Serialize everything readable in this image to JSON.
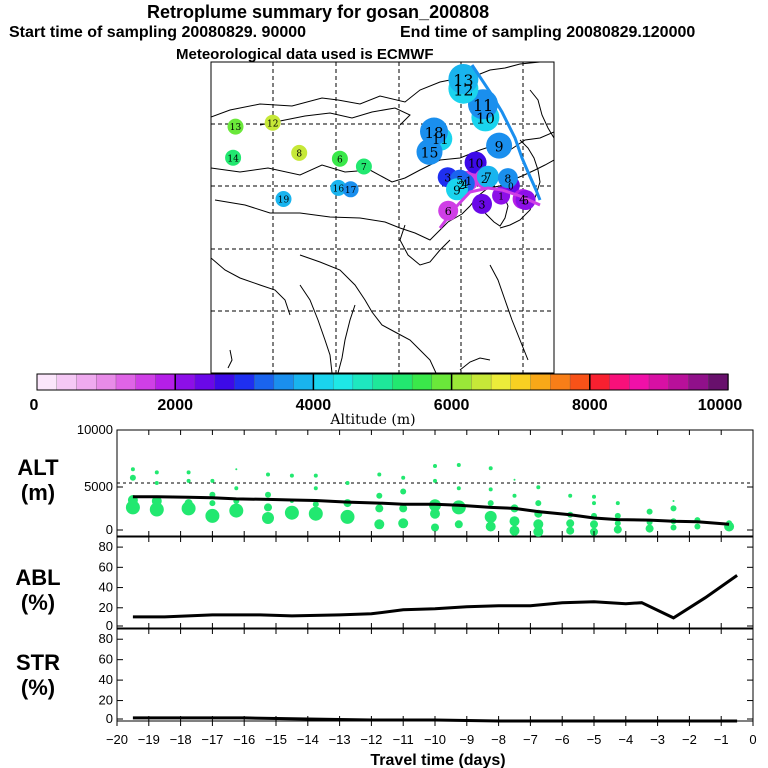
{
  "header": {
    "title": "Retroplume summary for gosan_200808",
    "start": "Start time of sampling 20080829. 90000",
    "end": "End time of sampling 20080829.120000",
    "met": "Meteorological data used is ECMWF"
  },
  "colorbar": {
    "label": "Altitude (m)",
    "ticks": [
      "0",
      "2000",
      "4000",
      "6000",
      "8000",
      "10000"
    ],
    "colors": [
      "#fbe6fb",
      "#f5c8f5",
      "#efaaef",
      "#e88be8",
      "#df64e6",
      "#cf3fe6",
      "#b51fe8",
      "#8d0fe8",
      "#6a08e8",
      "#3d0ae8",
      "#1f2ff0",
      "#1a64ee",
      "#1a8fee",
      "#19b4ee",
      "#1ad4ee",
      "#1ee8e6",
      "#1ee8c0",
      "#1ee89a",
      "#22e870",
      "#3ae84a",
      "#6ae83a",
      "#9ae838",
      "#c6e838",
      "#ecec3a",
      "#f8d022",
      "#f8a818",
      "#f87e18",
      "#f85218",
      "#f82030",
      "#f8107a",
      "#f010a8",
      "#d810a4",
      "#b8109a",
      "#90108a",
      "#68106c"
    ]
  },
  "map": {
    "plume_labels": [
      {
        "t": "0",
        "lon": 131.2,
        "lat": 38.6,
        "c": "#6a08e8",
        "s": 9
      },
      {
        "t": "1",
        "lon": 129.2,
        "lat": 36.5,
        "c": "#8d0fe8",
        "s": 9
      },
      {
        "t": "2",
        "lon": 125.8,
        "lat": 40.0,
        "c": "#cf3fe6",
        "s": 10
      },
      {
        "t": "3",
        "lon": 125.3,
        "lat": 34.8,
        "c": "#6a08e8",
        "s": 10
      },
      {
        "t": "4",
        "lon": 133.6,
        "lat": 35.8,
        "c": "#b51fe8",
        "s": 10
      },
      {
        "t": "5",
        "lon": 134.2,
        "lat": 35.6,
        "c": "#8d0fe8",
        "s": 10
      },
      {
        "t": "6",
        "lon": 118.4,
        "lat": 33.4,
        "c": "#cf3fe6",
        "s": 10
      },
      {
        "t": "7",
        "lon": 126.5,
        "lat": 40.4,
        "c": "#19b4ee",
        "s": 11
      },
      {
        "t": "8",
        "lon": 130.6,
        "lat": 40.1,
        "c": "#1a8fee",
        "s": 10
      },
      {
        "t": "9",
        "lon": 128.8,
        "lat": 46.8,
        "c": "#1a8fee",
        "s": 13
      },
      {
        "t": "10",
        "lon": 126.0,
        "lat": 52.6,
        "c": "#1ad4ee",
        "s": 14
      },
      {
        "t": "11",
        "lon": 125.5,
        "lat": 55.3,
        "c": "#1a8fee",
        "s": 15
      },
      {
        "t": "12",
        "lon": 121.5,
        "lat": 58.5,
        "c": "#1ad4ee",
        "s": 15
      },
      {
        "t": "13",
        "lon": 121.5,
        "lat": 60.5,
        "c": "#19b4ee",
        "s": 15
      }
    ],
    "outer_labels": [
      {
        "t": "1",
        "lon": 122.6,
        "lat": 39.6,
        "c": "#cf3fe6",
        "s": 10
      },
      {
        "t": "2",
        "lon": 121.2,
        "lat": 38.8,
        "c": "#19b4ee",
        "s": 10
      },
      {
        "t": "3",
        "lon": 118.3,
        "lat": 40.3,
        "c": "#1f2ff0",
        "s": 10
      },
      {
        "t": "4",
        "lon": 121.8,
        "lat": 39.0,
        "c": "#1a64ee",
        "s": 10
      },
      {
        "t": "5",
        "lon": 120.8,
        "lat": 39.8,
        "c": "#1a64ee",
        "s": 10
      },
      {
        "t": "6",
        "lon": 96.3,
        "lat": 44.1,
        "c": "#3ae84a",
        "s": 8
      },
      {
        "t": "7",
        "lon": 101.2,
        "lat": 42.5,
        "c": "#22e870",
        "s": 8
      },
      {
        "t": "8",
        "lon": 88.0,
        "lat": 45.3,
        "c": "#c6e838",
        "s": 8
      },
      {
        "t": "9",
        "lon": 120.2,
        "lat": 37.8,
        "c": "#1ad4ee",
        "s": 11
      },
      {
        "t": "10",
        "lon": 124.0,
        "lat": 43.3,
        "c": "#3d0ae8",
        "s": 11
      },
      {
        "t": "11",
        "lon": 116.8,
        "lat": 48.2,
        "c": "#1ad4ee",
        "s": 12
      },
      {
        "t": "12",
        "lon": 82.6,
        "lat": 51.5,
        "c": "#c6e838",
        "s": 8
      },
      {
        "t": "13",
        "lon": 75.0,
        "lat": 50.7,
        "c": "#6ae83a",
        "s": 8
      },
      {
        "t": "14",
        "lon": 74.5,
        "lat": 44.3,
        "c": "#22e870",
        "s": 8
      },
      {
        "t": "15",
        "lon": 114.6,
        "lat": 45.5,
        "c": "#1a8fee",
        "s": 13
      },
      {
        "t": "16",
        "lon": 96.0,
        "lat": 38.1,
        "c": "#19b4ee",
        "s": 8
      },
      {
        "t": "17",
        "lon": 98.5,
        "lat": 37.8,
        "c": "#1a8fee",
        "s": 8
      },
      {
        "t": "18",
        "lon": 115.5,
        "lat": 49.7,
        "c": "#1a8fee",
        "s": 14
      },
      {
        "t": "19",
        "lon": 84.8,
        "lat": 35.8,
        "c": "#19b4ee",
        "s": 8
      }
    ]
  },
  "chart_data": [
    {
      "type": "scatter",
      "name": "ALT",
      "ylabel": "ALT (m)",
      "ylim": [
        0,
        10000
      ],
      "yticks": [
        "0",
        "5000",
        "10000"
      ],
      "x": [
        -19.5,
        -18.75,
        -17.75,
        -17,
        -16.25,
        -15.25,
        -14.5,
        -13.75,
        -12.75,
        -11.75,
        -11,
        -10,
        -9.25,
        -8.25,
        -7.5,
        -6.75,
        -5.75,
        -5,
        -4.25,
        -3.25,
        -2.5,
        -1.75,
        -0.75
      ],
      "y": [
        3700,
        3700,
        3650,
        3600,
        3500,
        3450,
        3400,
        3350,
        3200,
        3100,
        3000,
        3000,
        2900,
        2700,
        2600,
        2300,
        2000,
        1700,
        1550,
        1500,
        1400,
        1350,
        1100
      ],
      "particles": [
        {
          "x": -19.5,
          "y": 2700,
          "r": 7
        },
        {
          "x": -19.5,
          "y": 3400,
          "r": 5
        },
        {
          "x": -19.5,
          "y": 5500,
          "r": 3
        },
        {
          "x": -19.5,
          "y": 6300,
          "r": 2
        },
        {
          "x": -18.75,
          "y": 2500,
          "r": 7
        },
        {
          "x": -18.75,
          "y": 3300,
          "r": 5
        },
        {
          "x": -18.75,
          "y": 5000,
          "r": 2
        },
        {
          "x": -18.75,
          "y": 6000,
          "r": 2
        },
        {
          "x": -17.75,
          "y": 2600,
          "r": 7
        },
        {
          "x": -17.75,
          "y": 3100,
          "r": 4
        },
        {
          "x": -17.75,
          "y": 5200,
          "r": 2
        },
        {
          "x": -17.75,
          "y": 6000,
          "r": 2
        },
        {
          "x": -17,
          "y": 1900,
          "r": 7
        },
        {
          "x": -17,
          "y": 3100,
          "r": 3
        },
        {
          "x": -17,
          "y": 3900,
          "r": 3
        },
        {
          "x": -17,
          "y": 5200,
          "r": 2
        },
        {
          "x": -16.25,
          "y": 2400,
          "r": 7
        },
        {
          "x": -16.25,
          "y": 3300,
          "r": 3
        },
        {
          "x": -16.25,
          "y": 4500,
          "r": 2
        },
        {
          "x": -16.25,
          "y": 6300,
          "r": 1
        },
        {
          "x": -15.25,
          "y": 1700,
          "r": 6
        },
        {
          "x": -15.25,
          "y": 2700,
          "r": 4
        },
        {
          "x": -15.25,
          "y": 3900,
          "r": 3
        },
        {
          "x": -15.25,
          "y": 5800,
          "r": 2
        },
        {
          "x": -14.5,
          "y": 2200,
          "r": 7
        },
        {
          "x": -14.5,
          "y": 3300,
          "r": 2
        },
        {
          "x": -14.5,
          "y": 5700,
          "r": 2
        },
        {
          "x": -13.75,
          "y": 2100,
          "r": 7
        },
        {
          "x": -13.75,
          "y": 3000,
          "r": 3
        },
        {
          "x": -13.75,
          "y": 4500,
          "r": 2
        },
        {
          "x": -13.75,
          "y": 5700,
          "r": 2
        },
        {
          "x": -12.75,
          "y": 1800,
          "r": 7
        },
        {
          "x": -12.75,
          "y": 3100,
          "r": 4
        },
        {
          "x": -12.75,
          "y": 5000,
          "r": 2
        },
        {
          "x": -11.75,
          "y": 1100,
          "r": 5
        },
        {
          "x": -11.75,
          "y": 2600,
          "r": 4
        },
        {
          "x": -11.75,
          "y": 3800,
          "r": 3
        },
        {
          "x": -11.75,
          "y": 5800,
          "r": 2
        },
        {
          "x": -11,
          "y": 1200,
          "r": 5
        },
        {
          "x": -11,
          "y": 2600,
          "r": 4
        },
        {
          "x": -11,
          "y": 4200,
          "r": 3
        },
        {
          "x": -11,
          "y": 5500,
          "r": 2
        },
        {
          "x": -10,
          "y": 800,
          "r": 4
        },
        {
          "x": -10,
          "y": 2100,
          "r": 5
        },
        {
          "x": -10,
          "y": 2900,
          "r": 6
        },
        {
          "x": -10,
          "y": 5200,
          "r": 2
        },
        {
          "x": -10,
          "y": 6600,
          "r": 2
        },
        {
          "x": -9.25,
          "y": 1100,
          "r": 4
        },
        {
          "x": -9.25,
          "y": 2700,
          "r": 7
        },
        {
          "x": -9.25,
          "y": 4500,
          "r": 2
        },
        {
          "x": -9.25,
          "y": 6700,
          "r": 2
        },
        {
          "x": -8.25,
          "y": 900,
          "r": 5
        },
        {
          "x": -8.25,
          "y": 1800,
          "r": 6
        },
        {
          "x": -8.25,
          "y": 3100,
          "r": 3
        },
        {
          "x": -8.25,
          "y": 4400,
          "r": 2
        },
        {
          "x": -8.25,
          "y": 6400,
          "r": 2
        },
        {
          "x": -7.5,
          "y": 500,
          "r": 5
        },
        {
          "x": -7.5,
          "y": 1400,
          "r": 5
        },
        {
          "x": -7.5,
          "y": 2600,
          "r": 4
        },
        {
          "x": -7.5,
          "y": 3800,
          "r": 2
        },
        {
          "x": -7.5,
          "y": 5300,
          "r": 1
        },
        {
          "x": -6.75,
          "y": 400,
          "r": 5
        },
        {
          "x": -6.75,
          "y": 1100,
          "r": 5
        },
        {
          "x": -6.75,
          "y": 2100,
          "r": 4
        },
        {
          "x": -6.75,
          "y": 3100,
          "r": 3
        },
        {
          "x": -6.75,
          "y": 4600,
          "r": 2
        },
        {
          "x": -5.75,
          "y": 500,
          "r": 4
        },
        {
          "x": -5.75,
          "y": 1200,
          "r": 4
        },
        {
          "x": -5.75,
          "y": 2000,
          "r": 3
        },
        {
          "x": -5.75,
          "y": 3800,
          "r": 2
        },
        {
          "x": -5,
          "y": 400,
          "r": 4
        },
        {
          "x": -5,
          "y": 1100,
          "r": 4
        },
        {
          "x": -5,
          "y": 1900,
          "r": 3
        },
        {
          "x": -5,
          "y": 3100,
          "r": 2
        },
        {
          "x": -5,
          "y": 3700,
          "r": 2
        },
        {
          "x": -4.25,
          "y": 600,
          "r": 4
        },
        {
          "x": -4.25,
          "y": 1200,
          "r": 3
        },
        {
          "x": -4.25,
          "y": 1900,
          "r": 3
        },
        {
          "x": -4.25,
          "y": 3100,
          "r": 2
        },
        {
          "x": -3.25,
          "y": 700,
          "r": 4
        },
        {
          "x": -3.25,
          "y": 1300,
          "r": 3
        },
        {
          "x": -3.25,
          "y": 2300,
          "r": 3
        },
        {
          "x": -2.5,
          "y": 800,
          "r": 3
        },
        {
          "x": -2.5,
          "y": 1400,
          "r": 3
        },
        {
          "x": -2.5,
          "y": 2600,
          "r": 3
        },
        {
          "x": -2.5,
          "y": 3300,
          "r": 1
        },
        {
          "x": -1.75,
          "y": 900,
          "r": 3
        },
        {
          "x": -1.75,
          "y": 1500,
          "r": 3
        },
        {
          "x": -0.75,
          "y": 900,
          "r": 5
        },
        {
          "x": -0.75,
          "y": 1200,
          "r": 3
        }
      ],
      "particle_color": "#22e870"
    },
    {
      "type": "line",
      "name": "ABL",
      "ylabel": "ABL (%)",
      "ylim": [
        0,
        90
      ],
      "yticks": [
        "0",
        "20",
        "40",
        "60",
        "80"
      ],
      "x": [
        -19.5,
        -18.5,
        -17,
        -15.5,
        -14.5,
        -13,
        -12,
        -11,
        -10,
        -9,
        -8,
        -7,
        -6,
        -5,
        -4,
        -3.5,
        -2.5,
        -1.5,
        -0.5
      ],
      "y": [
        11,
        11,
        13,
        13,
        12,
        13,
        14,
        18,
        19,
        21,
        22,
        22,
        25,
        26,
        24,
        25,
        10,
        30,
        52
      ]
    },
    {
      "type": "line",
      "name": "STR",
      "ylabel": "STR (%)",
      "ylim": [
        0,
        90
      ],
      "yticks": [
        "0",
        "20",
        "40",
        "60",
        "80"
      ],
      "x": [
        -19.5,
        -18,
        -16,
        -14,
        -12,
        -10,
        -8,
        -6,
        -4,
        -2,
        -0.5
      ],
      "y": [
        3,
        3,
        3,
        2,
        1,
        1,
        0,
        0,
        0,
        0,
        0
      ],
      "xlabel": "Travel time (days)",
      "xticks": [
        "−20",
        "−19",
        "−18",
        "−17",
        "−16",
        "−15",
        "−14",
        "−13",
        "−12",
        "−11",
        "−10",
        "−9",
        "−8",
        "−7",
        "−6",
        "−5",
        "−4",
        "−3",
        "−2",
        "−1",
        "0"
      ]
    }
  ]
}
